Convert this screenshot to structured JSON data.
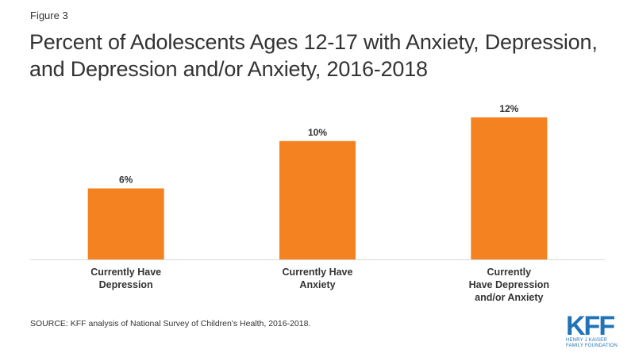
{
  "figure_label": "Figure 3",
  "title_lines": [
    "Percent of Adolescents Ages 12-17 with Anxiety, Depression,",
    "and Depression and/or Anxiety, 2016-2018"
  ],
  "source": "SOURCE: KFF analysis of National Survey of Children's Health, 2016-2018.",
  "logo": {
    "mark": "KFF",
    "sub_lines": [
      "HENRY J KAISER",
      "FAMILY FOUNDATION"
    ]
  },
  "colors": {
    "bar": "#f58220",
    "axis": "#d9d9d9",
    "logo": "#1f73b7"
  },
  "chart_data": {
    "type": "bar",
    "categories": [
      [
        "Currently Have",
        "Depression"
      ],
      [
        "Currently Have",
        "Anxiety"
      ],
      [
        "Currently",
        "Have Depression",
        "and/or Anxiety"
      ]
    ],
    "values": [
      6,
      10,
      12
    ],
    "data_labels": [
      "6%",
      "10%",
      "12%"
    ],
    "ylim": [
      0,
      12.6
    ],
    "grid": false,
    "legend": "none"
  }
}
